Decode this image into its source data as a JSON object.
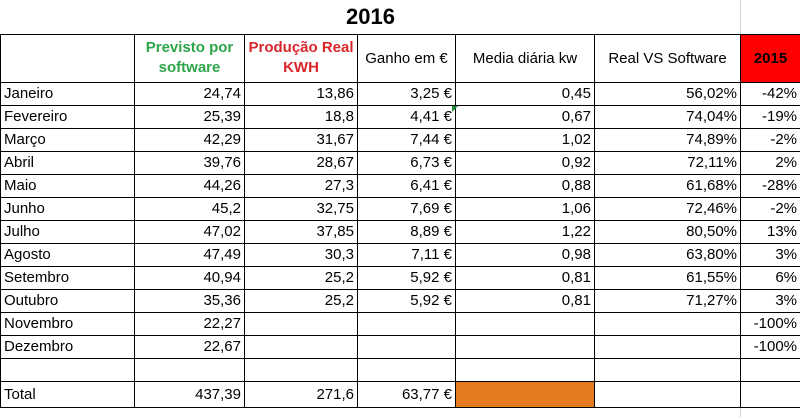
{
  "title": "2016",
  "headers": {
    "month": "",
    "previsto": "Previsto por software",
    "producao": "Produção Real KWH",
    "ganho": "Ganho em €",
    "media": "Media diária  kw",
    "real_vs": "Real VS Software",
    "y2015": "2015"
  },
  "rows": [
    {
      "month": "Janeiro",
      "previsto": "24,74",
      "producao": "13,86",
      "ganho": "3,25 €",
      "media": "0,45",
      "real_vs": "56,02%",
      "y2015": "-42%"
    },
    {
      "month": "Fevereiro",
      "previsto": "25,39",
      "producao": "18,8",
      "ganho": "4,41 €",
      "media": "0,67",
      "real_vs": "74,04%",
      "y2015": "-19%"
    },
    {
      "month": "Março",
      "previsto": "42,29",
      "producao": "31,67",
      "ganho": "7,44 €",
      "media": "1,02",
      "real_vs": "74,89%",
      "y2015": "-2%"
    },
    {
      "month": "Abril",
      "previsto": "39,76",
      "producao": "28,67",
      "ganho": "6,73 €",
      "media": "0,92",
      "real_vs": "72,11%",
      "y2015": "2%"
    },
    {
      "month": "Maio",
      "previsto": "44,26",
      "producao": "27,3",
      "ganho": "6,41 €",
      "media": "0,88",
      "real_vs": "61,68%",
      "y2015": "-28%"
    },
    {
      "month": "Junho",
      "previsto": "45,2",
      "producao": "32,75",
      "ganho": "7,69 €",
      "media": "1,06",
      "real_vs": "72,46%",
      "y2015": "-2%"
    },
    {
      "month": "Julho",
      "previsto": "47,02",
      "producao": "37,85",
      "ganho": "8,89 €",
      "media": "1,22",
      "real_vs": "80,50%",
      "y2015": "13%"
    },
    {
      "month": "Agosto",
      "previsto": "47,49",
      "producao": "30,3",
      "ganho": "7,11 €",
      "media": "0,98",
      "real_vs": "63,80%",
      "y2015": "3%"
    },
    {
      "month": "Setembro",
      "previsto": "40,94",
      "producao": "25,2",
      "ganho": "5,92 €",
      "media": "0,81",
      "real_vs": "61,55%",
      "y2015": "6%"
    },
    {
      "month": "Outubro",
      "previsto": "35,36",
      "producao": "25,2",
      "ganho": "5,92 €",
      "media": "0,81",
      "real_vs": "71,27%",
      "y2015": "3%"
    },
    {
      "month": "Novembro",
      "previsto": "22,27",
      "producao": "",
      "ganho": "",
      "media": "",
      "real_vs": "",
      "y2015": "-100%"
    },
    {
      "month": "Dezembro",
      "previsto": "22,67",
      "producao": "",
      "ganho": "",
      "media": "",
      "real_vs": "",
      "y2015": "-100%"
    }
  ],
  "total": {
    "label": "Total",
    "previsto": "437,39",
    "producao": "271,6",
    "ganho": "63,77 €"
  },
  "colors": {
    "previsto_header": "#2da64a",
    "producao_header": "#d8262b",
    "header_2015_fill": "#ff0000",
    "total_highlight_fill": "#e47a1e"
  }
}
